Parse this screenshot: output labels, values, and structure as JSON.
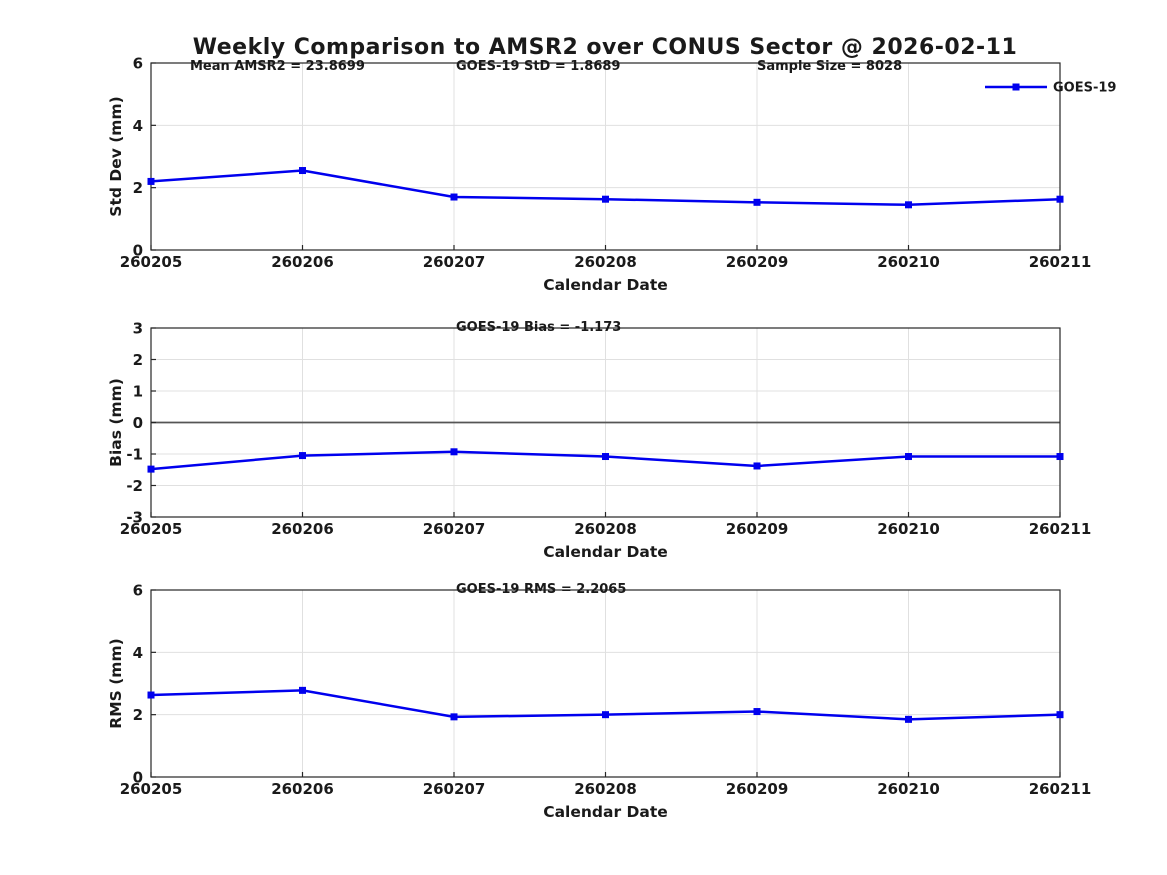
{
  "title": "Weekly Comparison to AMSR2 over CONUS Sector @ 2026-02-11",
  "colors": {
    "line": "#0000EE",
    "grid": "#E0E0E0",
    "axis": "#262626",
    "zero_line": "#555555",
    "text": "#1A1A1A",
    "background": "#FFFFFF"
  },
  "chart_data": [
    {
      "name": "std_dev",
      "type": "line",
      "xlabel": "Calendar Date",
      "ylabel": "Std Dev (mm)",
      "ylim": [
        0,
        6
      ],
      "yticks": [
        0,
        2,
        4,
        6
      ],
      "grid": true,
      "marker": "square",
      "categories": [
        "260205",
        "260206",
        "260207",
        "260208",
        "260209",
        "260210",
        "260211"
      ],
      "series": [
        {
          "name": "GOES-19",
          "values": [
            2.2,
            2.55,
            1.7,
            1.63,
            1.53,
            1.45,
            1.63
          ]
        }
      ],
      "legend": {
        "label": "GOES-19",
        "position": "northeast"
      },
      "annotations": [
        {
          "text": "Mean AMSR2 = 23.8699"
        },
        {
          "text": "GOES-19 StD = 1.8689"
        },
        {
          "text": "Sample Size = 8028"
        }
      ]
    },
    {
      "name": "bias",
      "type": "line",
      "xlabel": "Calendar Date",
      "ylabel": "Bias (mm)",
      "ylim": [
        -3,
        3
      ],
      "yticks": [
        -3,
        -2,
        -1,
        0,
        1,
        2,
        3
      ],
      "grid": true,
      "zero_line": true,
      "marker": "square",
      "categories": [
        "260205",
        "260206",
        "260207",
        "260208",
        "260209",
        "260210",
        "260211"
      ],
      "series": [
        {
          "name": "GOES-19",
          "values": [
            -1.48,
            -1.05,
            -0.93,
            -1.08,
            -1.38,
            -1.08,
            -1.08
          ]
        }
      ],
      "annotations": [
        {
          "text": "GOES-19 Bias  = -1.173"
        }
      ]
    },
    {
      "name": "rms",
      "type": "line",
      "xlabel": "Calendar Date",
      "ylabel": "RMS (mm)",
      "ylim": [
        0,
        6
      ],
      "yticks": [
        0,
        2,
        4,
        6
      ],
      "grid": true,
      "marker": "square",
      "categories": [
        "260205",
        "260206",
        "260207",
        "260208",
        "260209",
        "260210",
        "260211"
      ],
      "series": [
        {
          "name": "GOES-19",
          "values": [
            2.63,
            2.78,
            1.93,
            2.0,
            2.1,
            1.85,
            2.0
          ]
        }
      ],
      "annotations": [
        {
          "text": "GOES-19 RMS = 2.2065"
        }
      ]
    }
  ]
}
